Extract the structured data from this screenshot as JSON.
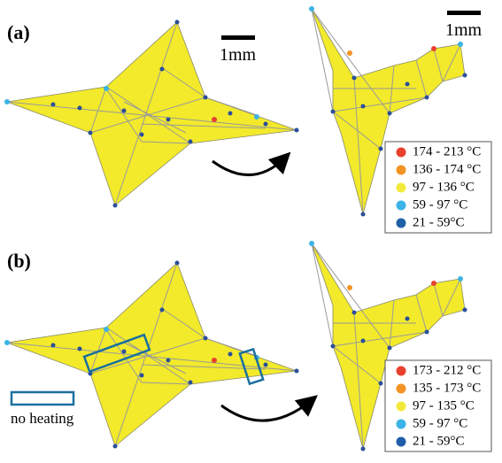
{
  "panels": [
    {
      "label": "(a)",
      "scale_bars": [
        "1mm",
        "1mm"
      ],
      "legend": [
        {
          "label": "174 - 213 °C",
          "color": "#e8412e"
        },
        {
          "label": "136 - 174 °C",
          "color": "#f39324"
        },
        {
          "label": "97 - 136 °C",
          "color": "#f2ea3a"
        },
        {
          "label": "59 - 97 °C",
          "color": "#3bb3e6"
        },
        {
          "label": "21 - 59°C",
          "color": "#1f5fa8"
        }
      ]
    },
    {
      "label": "(b)",
      "annotation": "no heating",
      "legend": [
        {
          "label": "173 - 212 °C",
          "color": "#e8412e"
        },
        {
          "label": "135 - 173 °C",
          "color": "#f39324"
        },
        {
          "label": "97 - 135 °C",
          "color": "#f2ea3a"
        },
        {
          "label": "59 - 97 °C",
          "color": "#3bb3e6"
        },
        {
          "label": "21 - 59°C",
          "color": "#1f5fa8"
        }
      ]
    }
  ]
}
